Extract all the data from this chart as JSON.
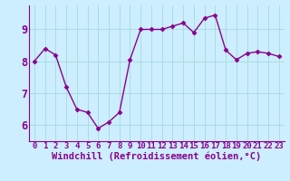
{
  "x": [
    0,
    1,
    2,
    3,
    4,
    5,
    6,
    7,
    8,
    9,
    10,
    11,
    12,
    13,
    14,
    15,
    16,
    17,
    18,
    19,
    20,
    21,
    22,
    23
  ],
  "y": [
    8.0,
    8.4,
    8.2,
    7.2,
    6.5,
    6.4,
    5.9,
    6.1,
    6.4,
    8.05,
    9.0,
    9.0,
    9.0,
    9.1,
    9.2,
    8.9,
    9.35,
    9.45,
    8.35,
    8.05,
    8.25,
    8.3,
    8.25,
    8.15
  ],
  "line_color": "#8b008b",
  "marker": "D",
  "marker_size": 2.5,
  "background_color": "#cceeff",
  "grid_color": "#aadddd",
  "xlabel": "Windchill (Refroidissement éolien,°C)",
  "ylabel": "",
  "ylim": [
    5.5,
    9.75
  ],
  "yticks": [
    6,
    7,
    8,
    9
  ],
  "xticks": [
    0,
    1,
    2,
    3,
    4,
    5,
    6,
    7,
    8,
    9,
    10,
    11,
    12,
    13,
    14,
    15,
    16,
    17,
    18,
    19,
    20,
    21,
    22,
    23
  ],
  "tick_color": "#8b008b",
  "label_color": "#8b008b",
  "tick_fontsize": 6.5,
  "xlabel_fontsize": 7.5,
  "ytick_fontsize": 8.5,
  "spine_color": "#8b008b"
}
